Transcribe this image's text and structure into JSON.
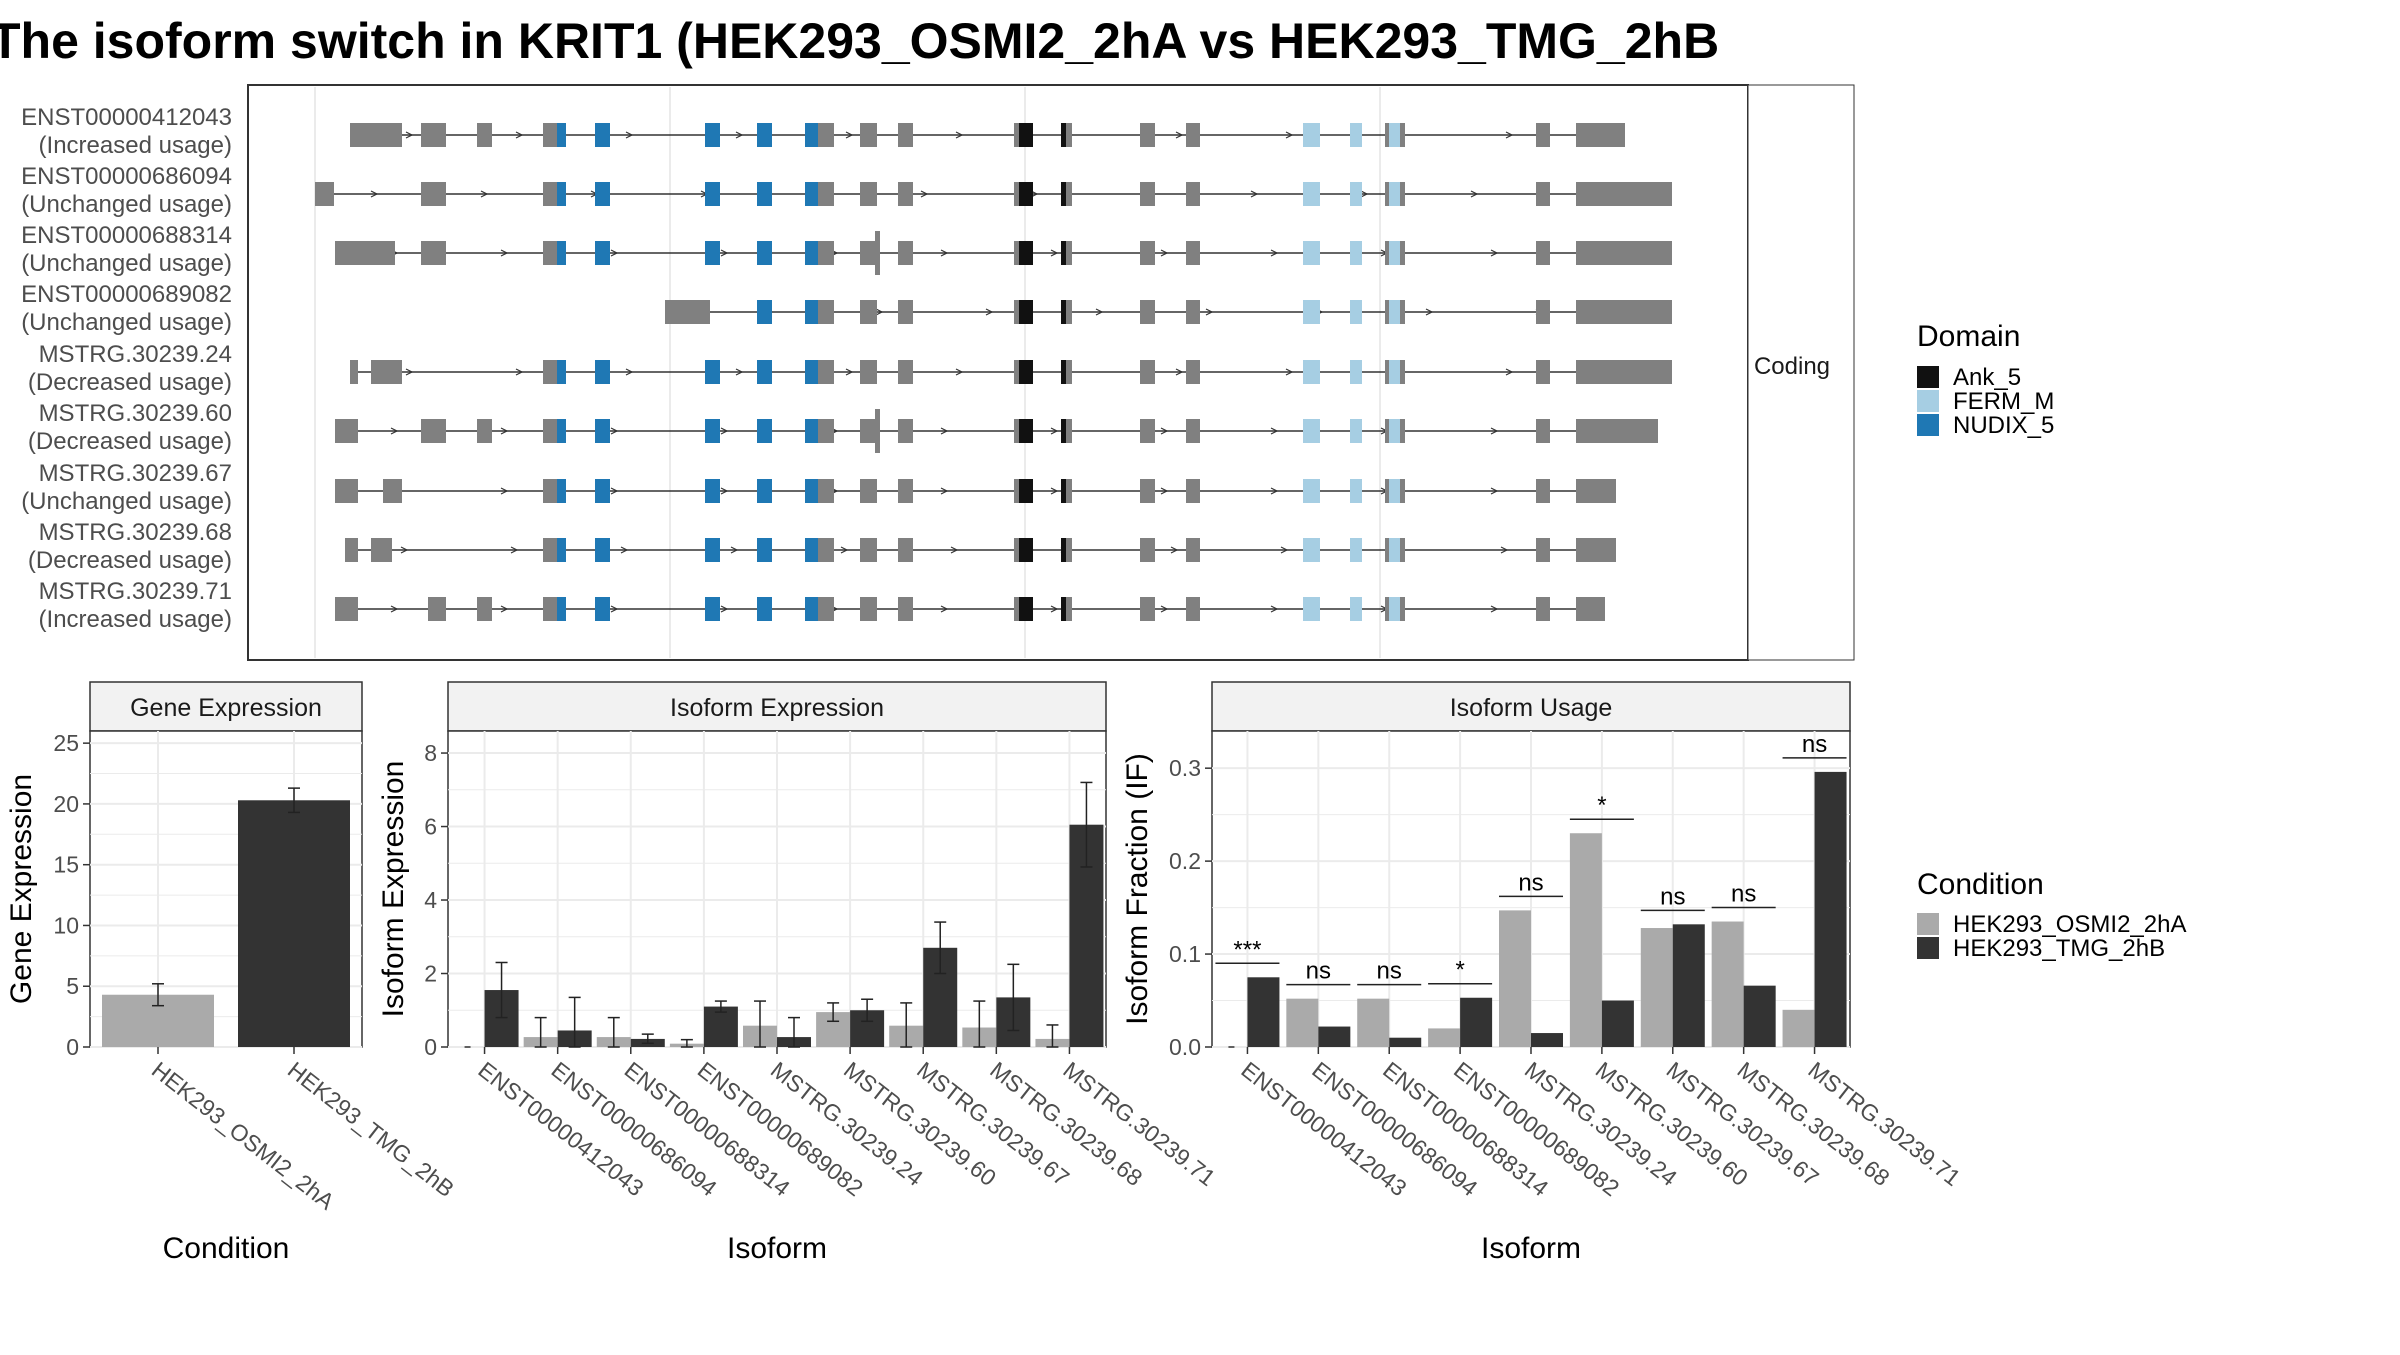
{
  "title": "The isoform switch in KRIT1 (HEK293_OSMI2_2hA vs HEK293_TMG_2hB",
  "colors": {
    "exon": "#808080",
    "Ank_5": "#111111",
    "FERM_M": "#a6cee3",
    "NUDIX_5": "#1f78b4",
    "cond1": "#aaaaaa",
    "cond2": "#333333",
    "strip": "#f2f2f2",
    "grid": "#ebebeb"
  },
  "structure_panel": {
    "strip_label": "Coding",
    "isoforms": [
      {
        "id": "ENST00000412043",
        "usage": "(Increased usage)"
      },
      {
        "id": "ENST00000686094",
        "usage": "(Unchanged usage)"
      },
      {
        "id": "ENST00000688314",
        "usage": "(Unchanged usage)"
      },
      {
        "id": "ENST00000689082",
        "usage": "(Unchanged usage)"
      },
      {
        "id": "MSTRG.30239.24",
        "usage": "(Decreased usage)"
      },
      {
        "id": "MSTRG.30239.60",
        "usage": "(Decreased usage)"
      },
      {
        "id": "MSTRG.30239.67",
        "usage": "(Unchanged usage)"
      },
      {
        "id": "MSTRG.30239.68",
        "usage": "(Decreased usage)"
      },
      {
        "id": "MSTRG.30239.71",
        "usage": "(Increased usage)"
      }
    ]
  },
  "domain_legend": {
    "title": "Domain",
    "items": [
      {
        "name": "Ank_5",
        "color_key": "Ank_5"
      },
      {
        "name": "FERM_M",
        "color_key": "FERM_M"
      },
      {
        "name": "NUDIX_5",
        "color_key": "NUDIX_5"
      }
    ]
  },
  "condition_legend": {
    "title": "Condition",
    "items": [
      {
        "name": "HEK293_OSMI2_2hA",
        "color_key": "cond1"
      },
      {
        "name": "HEK293_TMG_2hB",
        "color_key": "cond2"
      }
    ]
  },
  "chart_data": [
    {
      "type": "bar",
      "title": "Gene Expression",
      "xlabel": "Condition",
      "ylabel": "Gene Expression",
      "ylim": [
        0,
        26
      ],
      "yticks": [
        0,
        5,
        10,
        15,
        20,
        25
      ],
      "categories": [
        "HEK293_OSMI2_2hA",
        "HEK293_TMG_2hB"
      ],
      "values": [
        4.3,
        20.3
      ],
      "errors": [
        [
          3.4,
          5.2
        ],
        [
          19.3,
          21.3
        ]
      ]
    },
    {
      "type": "bar",
      "title": "Isoform Expression",
      "xlabel": "Isoform",
      "ylabel": "Isoform Expression",
      "ylim": [
        0,
        8.6
      ],
      "yticks": [
        0,
        2,
        4,
        6,
        8
      ],
      "categories": [
        "ENST00000412043",
        "ENST00000686094",
        "ENST00000688314",
        "ENST00000689082",
        "MSTRG.30239.24",
        "MSTRG.30239.60",
        "MSTRG.30239.67",
        "MSTRG.30239.68",
        "MSTRG.30239.71"
      ],
      "series": [
        {
          "name": "HEK293_OSMI2_2hA",
          "values": [
            0.0,
            0.27,
            0.27,
            0.09,
            0.58,
            0.95,
            0.58,
            0.53,
            0.22
          ],
          "errors": [
            [
              0.0,
              0.0
            ],
            [
              0.0,
              0.8
            ],
            [
              0.0,
              0.8
            ],
            [
              0.0,
              0.2
            ],
            [
              0.0,
              1.25
            ],
            [
              0.7,
              1.2
            ],
            [
              0.0,
              1.2
            ],
            [
              0.0,
              1.25
            ],
            [
              0.0,
              0.6
            ]
          ]
        },
        {
          "name": "HEK293_TMG_2hB",
          "values": [
            1.55,
            0.45,
            0.22,
            1.1,
            0.27,
            1.0,
            2.7,
            1.35,
            6.05
          ],
          "errors": [
            [
              0.8,
              2.3
            ],
            [
              0.0,
              1.35
            ],
            [
              0.1,
              0.35
            ],
            [
              0.95,
              1.25
            ],
            [
              0.0,
              0.8
            ],
            [
              0.7,
              1.3
            ],
            [
              2.0,
              3.4
            ],
            [
              0.45,
              2.25
            ],
            [
              4.9,
              7.2
            ]
          ]
        }
      ]
    },
    {
      "type": "bar",
      "title": "Isoform Usage",
      "xlabel": "Isoform",
      "ylabel": "Isoform Fraction (IF)",
      "ylim": [
        0,
        0.34
      ],
      "yticks": [
        0.0,
        0.1,
        0.2,
        0.3
      ],
      "yticklabels": [
        "0.0",
        "0.1",
        "0.2",
        "0.3"
      ],
      "categories": [
        "ENST00000412043",
        "ENST00000686094",
        "ENST00000688314",
        "ENST00000689082",
        "MSTRG.30239.24",
        "MSTRG.30239.60",
        "MSTRG.30239.67",
        "MSTRG.30239.68",
        "MSTRG.30239.71"
      ],
      "series": [
        {
          "name": "HEK293_OSMI2_2hA",
          "values": [
            0.0,
            0.052,
            0.052,
            0.02,
            0.147,
            0.23,
            0.128,
            0.135,
            0.04
          ]
        },
        {
          "name": "HEK293_TMG_2hB",
          "values": [
            0.075,
            0.022,
            0.01,
            0.053,
            0.015,
            0.05,
            0.132,
            0.066,
            0.296
          ]
        }
      ],
      "significance": [
        "***",
        "ns",
        "ns",
        "*",
        "ns",
        "*",
        "ns",
        "ns",
        "ns"
      ]
    }
  ]
}
